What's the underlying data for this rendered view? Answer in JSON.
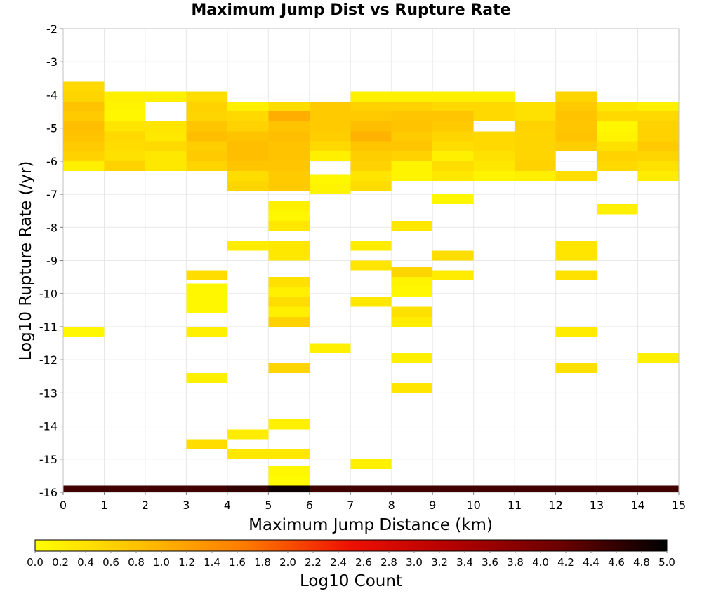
{
  "chart_data": {
    "type": "heatmap",
    "title": "Maximum Jump Dist vs Rupture Rate",
    "xlabel": "Maximum Jump Distance (km)",
    "ylabel": "Log10 Rupture Rate (/yr)",
    "xlim": [
      0,
      15
    ],
    "ylim": [
      -16,
      -2
    ],
    "x_ticks": [
      "0",
      "1",
      "2",
      "3",
      "4",
      "5",
      "6",
      "7",
      "8",
      "9",
      "10",
      "11",
      "12",
      "13",
      "14",
      "15"
    ],
    "y_ticks": [
      "-2",
      "-3",
      "-4",
      "-5",
      "-6",
      "-7",
      "-8",
      "-9",
      "-10",
      "-11",
      "-12",
      "-13",
      "-14",
      "-15",
      "-16"
    ],
    "grid": true,
    "bin_width_x": 1,
    "bin_height_y": 0.3,
    "colorbar": {
      "label": "Log10 Count",
      "min": 0,
      "max": 5,
      "ticks": [
        "0.0",
        "0.2",
        "0.4",
        "0.6",
        "0.8",
        "1.0",
        "1.2",
        "1.4",
        "1.6",
        "1.8",
        "2.0",
        "2.2",
        "2.4",
        "2.6",
        "2.8",
        "3.0",
        "3.2",
        "3.4",
        "3.6",
        "3.8",
        "4.0",
        "4.2",
        "4.4",
        "4.6",
        "4.8",
        "5.0"
      ],
      "colors": [
        "#ffff00",
        "#ffc000",
        "#ff7a00",
        "#ee1000",
        "#b00000",
        "#6a0000",
        "#000000"
      ]
    },
    "columns": [
      {
        "x": 0,
        "cells": [
          [
            -3.75,
            0.5
          ],
          [
            -4.05,
            0.55
          ],
          [
            -4.35,
            0.8
          ],
          [
            -4.65,
            0.7
          ],
          [
            -4.95,
            0.85
          ],
          [
            -5.25,
            0.8
          ],
          [
            -5.55,
            0.7
          ],
          [
            -5.85,
            0.6
          ],
          [
            -6.15,
            0.2
          ],
          [
            -11.15,
            0.1
          ],
          [
            -15.95,
            4.5
          ]
        ]
      },
      {
        "x": 1,
        "cells": [
          [
            -4.05,
            0.2
          ],
          [
            -4.35,
            0.15
          ],
          [
            -4.65,
            0.1
          ],
          [
            -4.95,
            0.35
          ],
          [
            -5.25,
            0.5
          ],
          [
            -5.55,
            0.45
          ],
          [
            -5.85,
            0.4
          ],
          [
            -6.15,
            0.6
          ],
          [
            -15.95,
            4.5
          ]
        ]
      },
      {
        "x": 2,
        "cells": [
          [
            -4.05,
            0.2
          ],
          [
            -4.95,
            0.35
          ],
          [
            -5.25,
            0.3
          ],
          [
            -5.55,
            0.5
          ],
          [
            -5.85,
            0.3
          ],
          [
            -6.15,
            0.3
          ],
          [
            -15.95,
            4.5
          ]
        ]
      },
      {
        "x": 3,
        "cells": [
          [
            -4.05,
            0.45
          ],
          [
            -4.35,
            0.6
          ],
          [
            -4.65,
            0.55
          ],
          [
            -4.95,
            0.75
          ],
          [
            -5.25,
            0.85
          ],
          [
            -5.55,
            0.65
          ],
          [
            -5.85,
            0.7
          ],
          [
            -6.15,
            0.55
          ],
          [
            -9.45,
            0.45
          ],
          [
            -9.85,
            0.1
          ],
          [
            -10.15,
            0.1
          ],
          [
            -10.45,
            0.1
          ],
          [
            -11.15,
            0.2
          ],
          [
            -12.55,
            0.2
          ],
          [
            -14.55,
            0.45
          ],
          [
            -15.95,
            4.5
          ]
        ]
      },
      {
        "x": 4,
        "cells": [
          [
            -4.35,
            0.2
          ],
          [
            -4.65,
            0.5
          ],
          [
            -4.95,
            0.6
          ],
          [
            -5.25,
            0.8
          ],
          [
            -5.55,
            0.85
          ],
          [
            -5.85,
            0.85
          ],
          [
            -6.15,
            0.75
          ],
          [
            -6.45,
            0.45
          ],
          [
            -6.75,
            0.55
          ],
          [
            -8.55,
            0.25
          ],
          [
            -14.25,
            0.25
          ],
          [
            -14.85,
            0.3
          ],
          [
            -15.95,
            4.6
          ]
        ]
      },
      {
        "x": 5,
        "cells": [
          [
            -4.35,
            0.45
          ],
          [
            -4.65,
            1.05
          ],
          [
            -4.95,
            0.8
          ],
          [
            -5.25,
            0.85
          ],
          [
            -5.55,
            0.8
          ],
          [
            -5.85,
            0.8
          ],
          [
            -6.15,
            0.75
          ],
          [
            -6.45,
            0.7
          ],
          [
            -6.75,
            0.7
          ],
          [
            -7.35,
            0.2
          ],
          [
            -7.65,
            0.1
          ],
          [
            -7.95,
            0.3
          ],
          [
            -8.55,
            0.3
          ],
          [
            -8.85,
            0.3
          ],
          [
            -9.65,
            0.4
          ],
          [
            -9.95,
            0.2
          ],
          [
            -10.25,
            0.45
          ],
          [
            -10.55,
            0.2
          ],
          [
            -10.85,
            0.6
          ],
          [
            -12.25,
            0.55
          ],
          [
            -13.95,
            0.2
          ],
          [
            -14.85,
            0.3
          ],
          [
            -15.35,
            0.1
          ],
          [
            -15.65,
            0.05
          ],
          [
            -15.95,
            4.9
          ]
        ]
      },
      {
        "x": 6,
        "cells": [
          [
            -4.35,
            0.7
          ],
          [
            -4.65,
            0.7
          ],
          [
            -4.95,
            0.7
          ],
          [
            -5.25,
            0.65
          ],
          [
            -5.55,
            0.5
          ],
          [
            -5.85,
            0.2
          ],
          [
            -6.55,
            0.1
          ],
          [
            -6.85,
            0.15
          ],
          [
            -11.65,
            0.2
          ],
          [
            -15.95,
            4.5
          ]
        ]
      },
      {
        "x": 7,
        "cells": [
          [
            -4.05,
            0.2
          ],
          [
            -4.35,
            0.6
          ],
          [
            -4.65,
            0.7
          ],
          [
            -4.95,
            0.85
          ],
          [
            -5.25,
            1.0
          ],
          [
            -5.55,
            0.75
          ],
          [
            -5.85,
            0.65
          ],
          [
            -6.15,
            0.6
          ],
          [
            -6.45,
            0.35
          ],
          [
            -6.75,
            0.45
          ],
          [
            -8.55,
            0.25
          ],
          [
            -9.15,
            0.35
          ],
          [
            -10.25,
            0.3
          ],
          [
            -15.15,
            0.2
          ],
          [
            -15.95,
            4.5
          ]
        ]
      },
      {
        "x": 8,
        "cells": [
          [
            -4.05,
            0.2
          ],
          [
            -4.35,
            0.6
          ],
          [
            -4.65,
            0.75
          ],
          [
            -4.95,
            0.8
          ],
          [
            -5.25,
            0.7
          ],
          [
            -5.55,
            0.75
          ],
          [
            -5.85,
            0.6
          ],
          [
            -6.15,
            0.15
          ],
          [
            -6.45,
            0.15
          ],
          [
            -7.95,
            0.3
          ],
          [
            -9.35,
            0.55
          ],
          [
            -9.65,
            0.15
          ],
          [
            -9.95,
            0.1
          ],
          [
            -10.55,
            0.4
          ],
          [
            -10.85,
            0.25
          ],
          [
            -11.95,
            0.2
          ],
          [
            -12.85,
            0.35
          ],
          [
            -15.95,
            4.5
          ]
        ]
      },
      {
        "x": 9,
        "cells": [
          [
            -4.05,
            0.2
          ],
          [
            -4.35,
            0.5
          ],
          [
            -4.65,
            0.75
          ],
          [
            -4.95,
            0.7
          ],
          [
            -5.25,
            0.55
          ],
          [
            -5.55,
            0.45
          ],
          [
            -5.85,
            0.2
          ],
          [
            -6.15,
            0.45
          ],
          [
            -6.45,
            0.3
          ],
          [
            -7.15,
            0.1
          ],
          [
            -8.85,
            0.45
          ],
          [
            -9.45,
            0.25
          ],
          [
            -15.95,
            4.5
          ]
        ]
      },
      {
        "x": 10,
        "cells": [
          [
            -4.05,
            0.2
          ],
          [
            -4.35,
            0.5
          ],
          [
            -4.65,
            0.5
          ],
          [
            -5.25,
            0.5
          ],
          [
            -5.55,
            0.5
          ],
          [
            -5.85,
            0.4
          ],
          [
            -6.15,
            0.3
          ],
          [
            -6.45,
            0.15
          ],
          [
            -15.95,
            4.5
          ]
        ]
      },
      {
        "x": 11,
        "cells": [
          [
            -4.35,
            0.4
          ],
          [
            -4.65,
            0.4
          ],
          [
            -4.95,
            0.6
          ],
          [
            -5.25,
            0.55
          ],
          [
            -5.55,
            0.55
          ],
          [
            -5.85,
            0.55
          ],
          [
            -6.15,
            0.6
          ],
          [
            -6.45,
            0.2
          ],
          [
            -15.95,
            4.5
          ]
        ]
      },
      {
        "x": 12,
        "cells": [
          [
            -4.05,
            0.55
          ],
          [
            -4.35,
            0.7
          ],
          [
            -4.65,
            0.8
          ],
          [
            -4.95,
            0.75
          ],
          [
            -5.25,
            0.8
          ],
          [
            -5.55,
            0.65
          ],
          [
            -6.45,
            0.45
          ],
          [
            -8.55,
            0.35
          ],
          [
            -8.85,
            0.35
          ],
          [
            -9.45,
            0.4
          ],
          [
            -11.15,
            0.25
          ],
          [
            -12.25,
            0.4
          ],
          [
            -15.95,
            4.5
          ]
        ]
      },
      {
        "x": 13,
        "cells": [
          [
            -4.35,
            0.3
          ],
          [
            -4.65,
            0.5
          ],
          [
            -4.95,
            0.1
          ],
          [
            -5.25,
            0.15
          ],
          [
            -5.55,
            0.4
          ],
          [
            -5.85,
            0.6
          ],
          [
            -6.15,
            0.5
          ],
          [
            -7.45,
            0.2
          ],
          [
            -15.95,
            4.5
          ]
        ]
      },
      {
        "x": 14,
        "cells": [
          [
            -4.35,
            0.2
          ],
          [
            -4.65,
            0.5
          ],
          [
            -4.95,
            0.6
          ],
          [
            -5.25,
            0.6
          ],
          [
            -5.55,
            0.7
          ],
          [
            -5.85,
            0.55
          ],
          [
            -6.15,
            0.4
          ],
          [
            -6.45,
            0.25
          ],
          [
            -11.95,
            0.2
          ],
          [
            -15.95,
            4.5
          ]
        ]
      }
    ]
  }
}
